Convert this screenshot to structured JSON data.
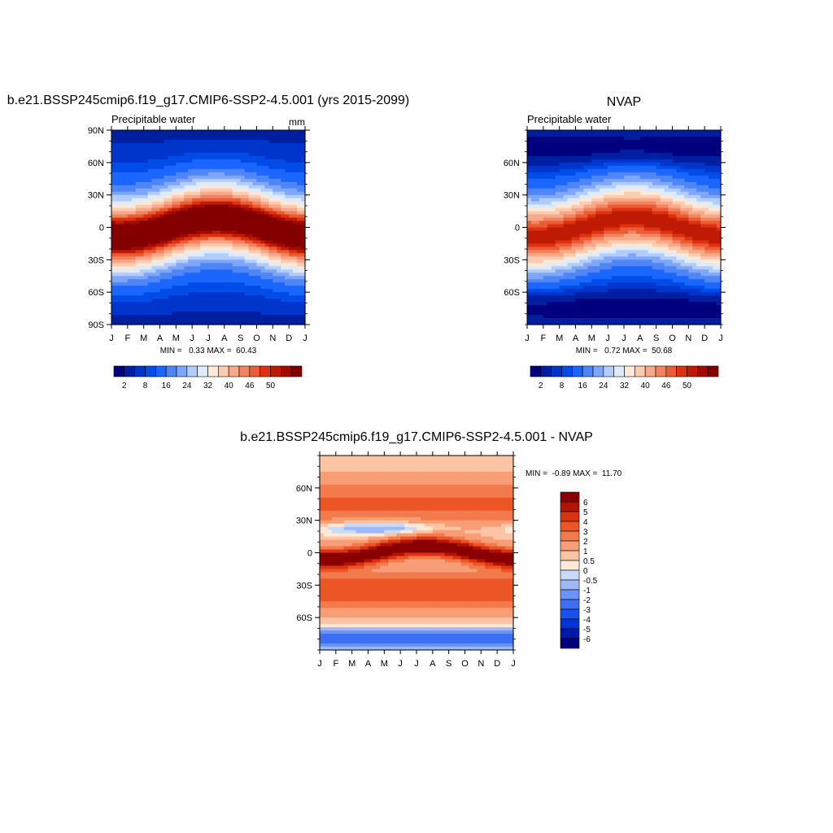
{
  "panels": {
    "model": {
      "title": "b.e21.BSSP245cmip6.f19_g17.CMIP6-SSP2-4.5.001 (yrs 2015-2099)",
      "left_label": "Precipitable water",
      "units": "mm",
      "min_max": "MIN =   0.33 MAX =  60.43"
    },
    "obs": {
      "title": "NVAP",
      "left_label": "Precipitable water",
      "min_max": "MIN =   0.72 MAX =  50.68"
    },
    "diff": {
      "title": "b.e21.BSSP245cmip6.f19_g17.CMIP6-SSP2-4.5.001 - NVAP",
      "min_max": "MIN =  -0.89 MAX =  11.70"
    }
  },
  "chart_data": [
    {
      "type": "heatmap",
      "title": "b.e21.BSSP245cmip6.f19_g17.CMIP6-SSP2-4.5.001 (yrs 2015-2099)",
      "subtitle": "Precipitable water",
      "units": "mm",
      "x_tick_labels": [
        "J",
        "F",
        "M",
        "A",
        "M",
        "J",
        "J",
        "A",
        "S",
        "O",
        "N",
        "D",
        "J"
      ],
      "y_tick_labels": [
        "90N",
        "60N",
        "30N",
        "0",
        "30S",
        "60S",
        "90S"
      ],
      "y_ticks": [
        90,
        60,
        30,
        0,
        -30,
        -60,
        -90
      ],
      "ylim": [
        -90,
        90
      ],
      "months": [
        "Jan",
        "Feb",
        "Mar",
        "Apr",
        "May",
        "Jun",
        "Jul",
        "Aug",
        "Sep",
        "Oct",
        "Nov",
        "Dec"
      ],
      "colorbar_labels": [
        "2",
        "8",
        "16",
        "24",
        "32",
        "40",
        "46",
        "50"
      ],
      "min": 0.33,
      "max": 60.43
    },
    {
      "type": "heatmap",
      "title": "NVAP",
      "subtitle": "Precipitable water",
      "x_tick_labels": [
        "J",
        "F",
        "M",
        "A",
        "M",
        "J",
        "J",
        "A",
        "S",
        "O",
        "N",
        "D",
        "J"
      ],
      "y_tick_labels": [
        "60N",
        "30N",
        "0",
        "30S",
        "60S"
      ],
      "y_ticks": [
        60,
        30,
        0,
        -30,
        -60
      ],
      "ylim": [
        -90,
        90
      ],
      "colorbar_labels": [
        "2",
        "8",
        "16",
        "24",
        "32",
        "40",
        "46",
        "50"
      ],
      "min": 0.72,
      "max": 50.68
    },
    {
      "type": "heatmap",
      "title": "b.e21.BSSP245cmip6.f19_g17.CMIP6-SSP2-4.5.001 - NVAP",
      "x_tick_labels": [
        "J",
        "F",
        "M",
        "A",
        "M",
        "J",
        "J",
        "A",
        "S",
        "O",
        "N",
        "D",
        "J"
      ],
      "y_tick_labels": [
        "60N",
        "30N",
        "0",
        "30S",
        "60S"
      ],
      "y_ticks": [
        60,
        30,
        0,
        -30,
        -60
      ],
      "ylim": [
        -90,
        90
      ],
      "colorbar_labels": [
        "6",
        "5",
        "4",
        "3",
        "2",
        "1",
        "0.5",
        "0",
        "-0.5",
        "-1",
        "-2",
        "-3",
        "-4",
        "-5",
        "-6"
      ],
      "min": -0.89,
      "max": 11.7
    }
  ],
  "colormaps": {
    "abs": [
      "#00007f",
      "#001fa0",
      "#0035cc",
      "#004ce8",
      "#1a66ff",
      "#4f86f7",
      "#7ea6fa",
      "#b2cdfc",
      "#dcebfe",
      "#fde9da",
      "#fbccb0",
      "#f7a98a",
      "#f28561",
      "#ec5c34",
      "#dd3210",
      "#bf1a04",
      "#a00a00",
      "#840000"
    ],
    "diff": [
      "#00007f",
      "#0018a8",
      "#0033d6",
      "#1a50f0",
      "#3d6ff5",
      "#6a93f7",
      "#9db9fa",
      "#c8dbfc",
      "#fde9d6",
      "#fbc4a4",
      "#f79e77",
      "#f27a4c",
      "#ec5626",
      "#d93310",
      "#b11500",
      "#8a0000"
    ]
  }
}
